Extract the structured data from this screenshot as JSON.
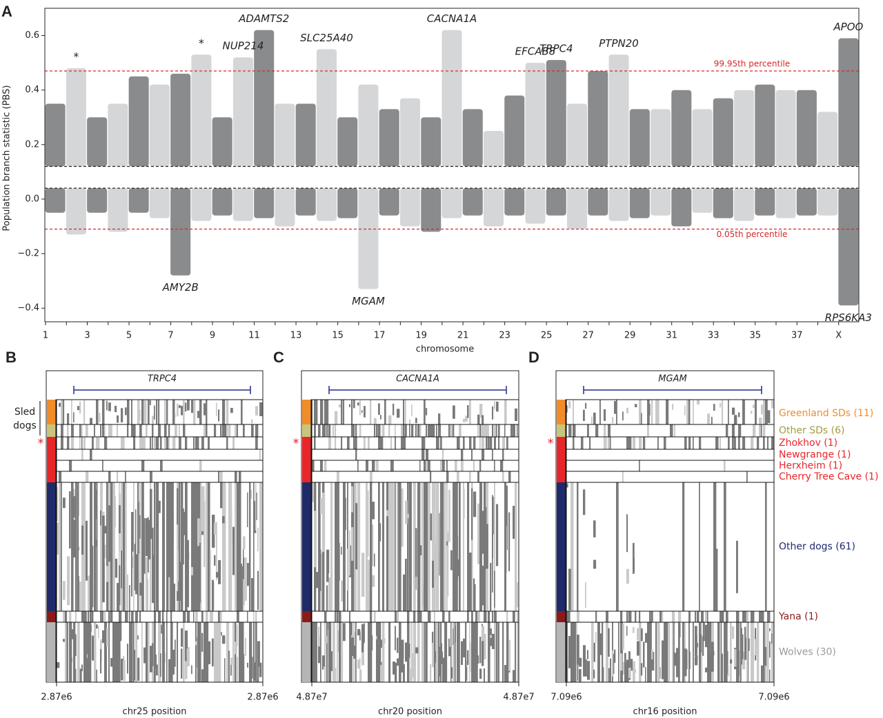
{
  "panel_labels": [
    "A",
    "B",
    "C",
    "D"
  ],
  "group_label": [
    "Sled",
    "dogs"
  ],
  "marker": "*",
  "groups": [
    {
      "name": "Greenland SDs (11)",
      "color": "#f28c28",
      "text_color": "#f28c28"
    },
    {
      "name": "Other SDs (6)",
      "color": "#c9c47e",
      "text_color": "#a39c3c"
    },
    {
      "name": "Zhokhov (1)",
      "color": "#e8262a",
      "text_color": "#e8262a"
    },
    {
      "name": "Newgrange (1)",
      "color": "#e8262a",
      "text_color": "#e8262a"
    },
    {
      "name": "Herxheim (1)",
      "color": "#e8262a",
      "text_color": "#e8262a"
    },
    {
      "name": "Cherry Tree Cave (1)",
      "color": "#e8262a",
      "text_color": "#e8262a"
    },
    {
      "name": "Other dogs (61)",
      "color": "#1f2a6b",
      "text_color": "#1f2a6b"
    },
    {
      "name": "Yana (1)",
      "color": "#8b1a1a",
      "text_color": "#8b1a1a"
    },
    {
      "name": "Wolves (30)",
      "color": "#b5b5b5",
      "text_color": "#9a9a9a"
    }
  ],
  "chart_data": [
    {
      "type": "manhattan",
      "ylabel": "Population branch statistic (PBS)",
      "xlabel": "chromosome",
      "categories": [
        "1",
        null,
        "3",
        null,
        "5",
        null,
        "7",
        null,
        "9",
        null,
        "11",
        null,
        "13",
        null,
        "15",
        null,
        "17",
        null,
        "19",
        null,
        "21",
        null,
        "23",
        null,
        "25",
        null,
        "27",
        null,
        "29",
        null,
        "31",
        null,
        "33",
        null,
        "35",
        null,
        "37",
        null,
        "X"
      ],
      "colors": [
        "#8a8b8d",
        "#d5d6d8"
      ],
      "series": [
        {
          "name": "max",
          "values": [
            0.35,
            0.48,
            0.3,
            0.35,
            0.45,
            0.42,
            0.46,
            0.53,
            0.3,
            0.52,
            0.62,
            0.35,
            0.35,
            0.55,
            0.3,
            0.42,
            0.33,
            0.37,
            0.3,
            0.62,
            0.33,
            0.25,
            0.38,
            0.5,
            0.51,
            0.35,
            0.47,
            0.53,
            0.33,
            0.33,
            0.4,
            0.33,
            0.37,
            0.4,
            0.42,
            0.4,
            0.4,
            0.32,
            0.59
          ],
          "labels": [
            null,
            "*",
            null,
            null,
            null,
            null,
            null,
            "*",
            null,
            "NUP214",
            "ADAMTS2",
            null,
            null,
            "SLC25A40",
            null,
            null,
            null,
            null,
            null,
            "CACNA1A",
            null,
            null,
            null,
            "EFCAB8",
            "TRPC4",
            null,
            null,
            "PTPN20",
            null,
            null,
            null,
            null,
            null,
            null,
            null,
            null,
            null,
            null,
            "APOO"
          ]
        },
        {
          "name": "min",
          "values": [
            -0.05,
            -0.13,
            -0.05,
            -0.12,
            -0.05,
            -0.07,
            -0.28,
            -0.08,
            -0.06,
            -0.08,
            -0.07,
            -0.1,
            -0.06,
            -0.08,
            -0.07,
            -0.33,
            -0.06,
            -0.1,
            -0.12,
            -0.07,
            -0.06,
            -0.1,
            -0.06,
            -0.09,
            -0.06,
            -0.11,
            -0.06,
            -0.08,
            -0.07,
            -0.06,
            -0.1,
            -0.05,
            -0.07,
            -0.08,
            -0.06,
            -0.07,
            -0.06,
            -0.06,
            -0.39
          ],
          "labels": [
            null,
            null,
            null,
            null,
            null,
            null,
            "AMY2B",
            null,
            null,
            null,
            null,
            null,
            null,
            null,
            null,
            "MGAM",
            null,
            null,
            null,
            null,
            null,
            null,
            null,
            null,
            null,
            null,
            null,
            null,
            null,
            null,
            null,
            null,
            null,
            null,
            null,
            null,
            null,
            null,
            "RPS6KA3"
          ]
        }
      ],
      "reference_lines": [
        {
          "value": 0.47,
          "label": "99.95th percentile",
          "color": "#d62728"
        },
        {
          "value": -0.11,
          "label": "0.05th percentile",
          "color": "#d62728"
        },
        {
          "value": 0.12,
          "color": "#222222"
        },
        {
          "value": 0.04,
          "color": "#222222"
        }
      ],
      "ylim": [
        -0.45,
        0.7
      ],
      "yticks": [
        {
          "value": -0.4,
          "label": "−0.4"
        },
        {
          "value": -0.2,
          "label": "−0.2"
        },
        {
          "value": 0,
          "label": "0.0"
        },
        0.2,
        0.4,
        0.6
      ]
    },
    {
      "type": "haplotype",
      "gene": "TRPC4",
      "xlabel": "chr25 position",
      "xtick_labels": [
        "2.87e6",
        "2.87e6"
      ]
    },
    {
      "type": "haplotype",
      "gene": "CACNA1A",
      "xlabel": "chr20 position",
      "xtick_labels": [
        "4.87e7",
        "4.87e7"
      ]
    },
    {
      "type": "haplotype",
      "gene": "MGAM",
      "xlabel": "chr16 position",
      "xtick_labels": [
        "7.09e6",
        "7.09e6"
      ]
    }
  ]
}
